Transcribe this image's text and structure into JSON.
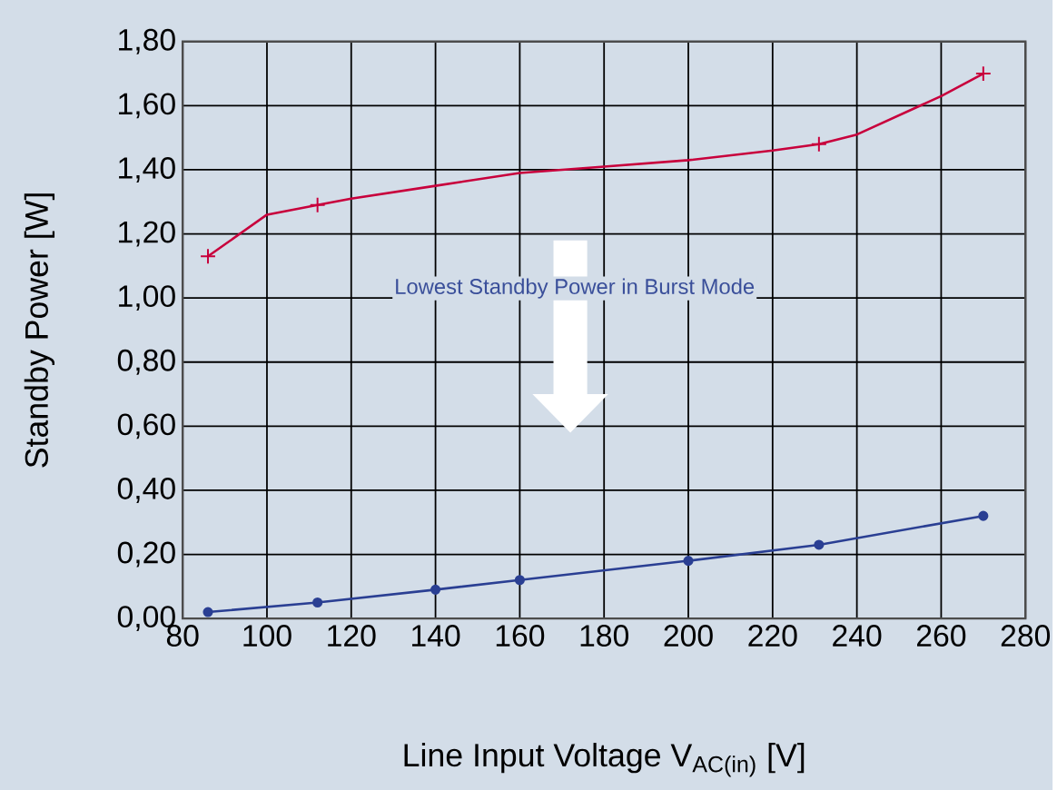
{
  "chart_data": {
    "type": "line",
    "xlabel": "Line Input Voltage V$_{AC(in)}$ [V]",
    "ylabel": "Standby Power  [W]",
    "annotations": [
      "Lowest Standby Power in Burst Mode"
    ],
    "xlim": [
      80,
      280
    ],
    "xticks": [
      80,
      100,
      120,
      140,
      160,
      180,
      200,
      220,
      240,
      260,
      280
    ],
    "ylim": [
      0,
      1.8
    ],
    "yticks": [
      {
        "value": 0,
        "label": "0,00"
      },
      {
        "value": 0.2,
        "label": "0,20"
      },
      {
        "value": 0.4,
        "label": "0,40"
      },
      {
        "value": 0.6,
        "label": "0,60"
      },
      {
        "value": 0.8,
        "label": "0,80"
      },
      {
        "value": 1.0,
        "label": "1,00"
      },
      {
        "value": 1.2,
        "label": "1,20"
      },
      {
        "value": 1.4,
        "label": "1,40"
      },
      {
        "value": 1.6,
        "label": "1,60"
      },
      {
        "value": 1.8,
        "label": "1,80"
      }
    ],
    "grid": true,
    "series": [
      {
        "color": "#c8003c",
        "marker": "none",
        "x": [
          86,
          100,
          112,
          120,
          140,
          160,
          180,
          200,
          220,
          231,
          240,
          260,
          270
        ],
        "values": [
          1.13,
          1.26,
          1.29,
          1.31,
          1.35,
          1.39,
          1.41,
          1.43,
          1.46,
          1.48,
          1.51,
          1.63,
          1.7
        ]
      },
      {
        "type": "scatter",
        "color": "#c8003c",
        "marker": "cross",
        "x": [
          86,
          112,
          231,
          270
        ],
        "values": [
          1.13,
          1.29,
          1.48,
          1.7
        ]
      },
      {
        "color": "#2a3f93",
        "marker": "circle",
        "x": [
          86,
          112,
          140,
          160,
          200,
          231,
          270
        ],
        "values": [
          0.02,
          0.05,
          0.09,
          0.12,
          0.18,
          0.23,
          0.32
        ]
      }
    ]
  }
}
